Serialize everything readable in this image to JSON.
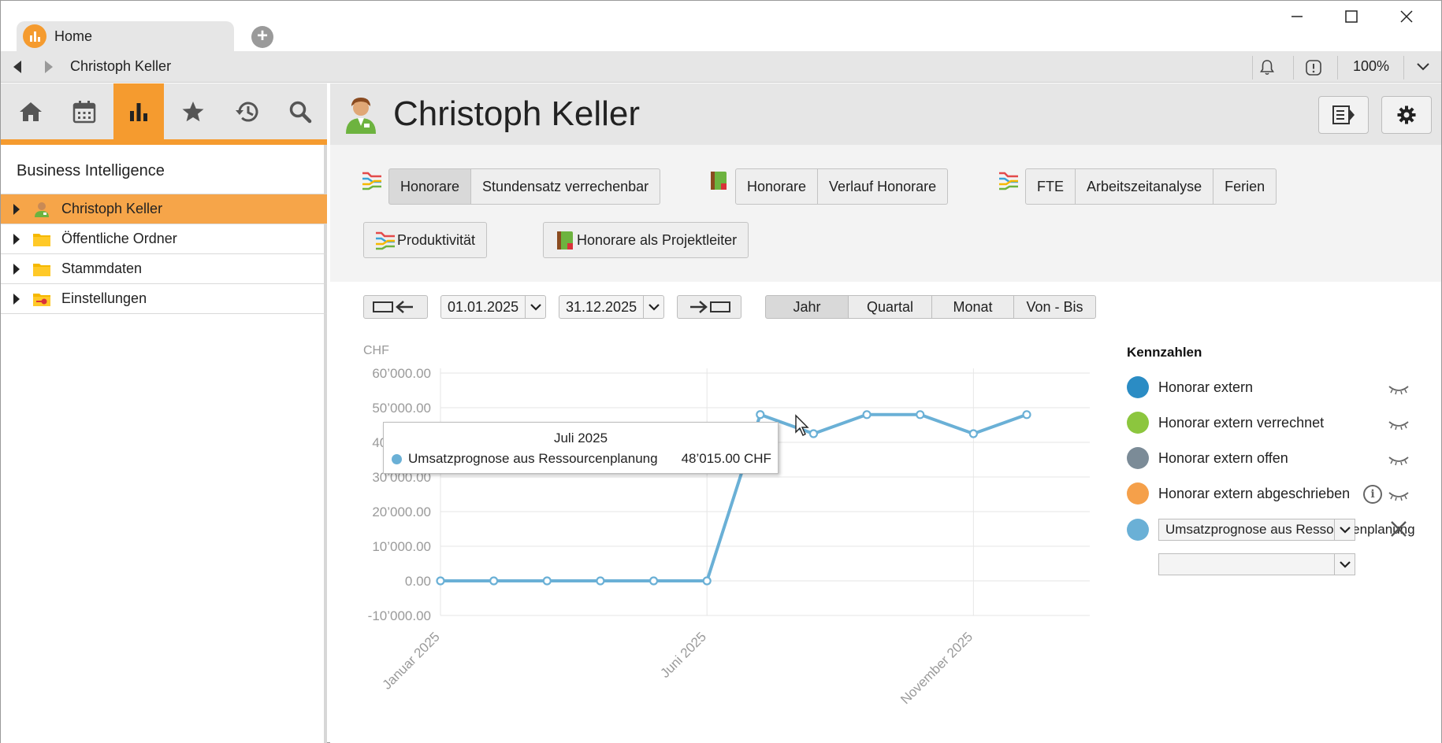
{
  "tab": {
    "title": "Home"
  },
  "addressbar": {
    "path": "Christoph Keller",
    "zoom": "100%"
  },
  "sidebar": {
    "heading": "Business Intelligence",
    "tree": [
      {
        "label": "Christoph Keller",
        "icon": "person-icon"
      },
      {
        "label": "Öffentliche Ordner",
        "icon": "folder-icon"
      },
      {
        "label": "Stammdaten",
        "icon": "folder-icon"
      },
      {
        "label": "Einstellungen",
        "icon": "settings-folder-icon"
      }
    ]
  },
  "main": {
    "title": "Christoph Keller",
    "group1": [
      "Honorare",
      "Stundensatz verrechenbar"
    ],
    "group2": [
      "Honorare",
      "Verlauf Honorare"
    ],
    "group3": [
      "FTE",
      "Arbeitszeitanalyse",
      "Ferien"
    ],
    "group4": [
      "Produktivität"
    ],
    "group5": [
      "Honorare als Projektleiter"
    ]
  },
  "dates": {
    "from": "01.01.2025",
    "to": "31.12.2025"
  },
  "ranges": [
    "Jahr",
    "Quartal",
    "Monat",
    "Von - Bis"
  ],
  "legend": {
    "title": "Kennzahlen",
    "items": [
      {
        "label": "Honorar extern",
        "color": "#2b8cc4"
      },
      {
        "label": "Honorar extern verrechnet",
        "color": "#8cc63e"
      },
      {
        "label": "Honorar extern offen",
        "color": "#7b8b97"
      },
      {
        "label": "Honorar extern abgeschrieben",
        "color": "#f5a04a"
      }
    ],
    "select_color": "#6ab0d6",
    "select_value": "Umsatzprognose aus Ressourcenplanung",
    "select_empty": ""
  },
  "tooltip": {
    "title": "Juli 2025",
    "series": "Umsatzprognose aus Ressourcenplanung",
    "value": "48’015.00 CHF"
  },
  "chart_data": {
    "type": "line",
    "ylabel": "CHF",
    "ylim": [
      -10000,
      60000
    ],
    "y_ticks": [
      "60’000.00",
      "50’000.00",
      "40’000.00",
      "30’000.00",
      "20’000.00",
      "10’000.00",
      "0.00",
      "-10’000.00"
    ],
    "y_tick_values": [
      60000,
      50000,
      40000,
      30000,
      20000,
      10000,
      0,
      -10000
    ],
    "x_tick_labels": [
      {
        "index": 0,
        "label": "Januar 2025"
      },
      {
        "index": 5,
        "label": "Juni 2025"
      },
      {
        "index": 10,
        "label": "November 2025"
      }
    ],
    "x_count": 12,
    "series": [
      {
        "name": "Umsatzprognose aus Ressourcenplanung",
        "color": "#6ab0d6",
        "values": [
          0,
          0,
          0,
          0,
          0,
          0,
          48015,
          42500,
          48000,
          48000,
          42500,
          48000
        ]
      }
    ],
    "grid": true
  }
}
